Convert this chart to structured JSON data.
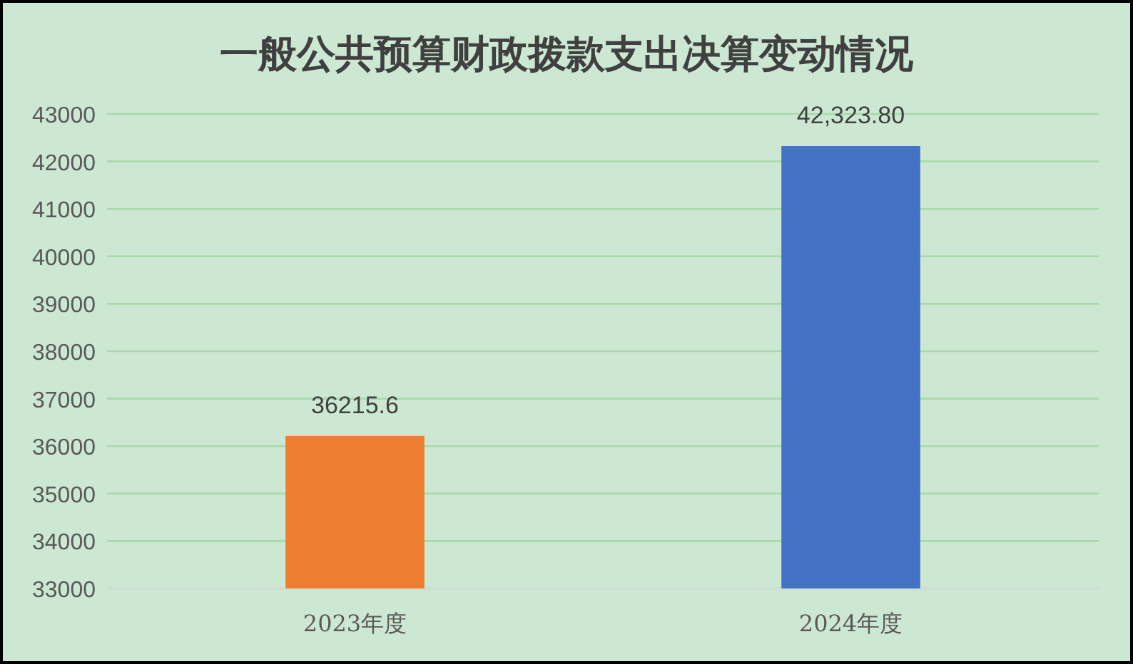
{
  "chart_data": {
    "type": "bar",
    "title": "一般公共预算财政拨款支出决算变动情况",
    "categories": [
      "2023年度",
      "2024年度"
    ],
    "values": [
      36215.6,
      42323.8
    ],
    "value_labels": [
      "36215.6",
      "42,323.80"
    ],
    "colors": [
      "#ed7d31",
      "#4472c4"
    ],
    "ylim": [
      33000,
      43000
    ],
    "yticks": [
      33000,
      34000,
      35000,
      36000,
      37000,
      38000,
      39000,
      40000,
      41000,
      42000,
      43000
    ],
    "grid": "y"
  }
}
